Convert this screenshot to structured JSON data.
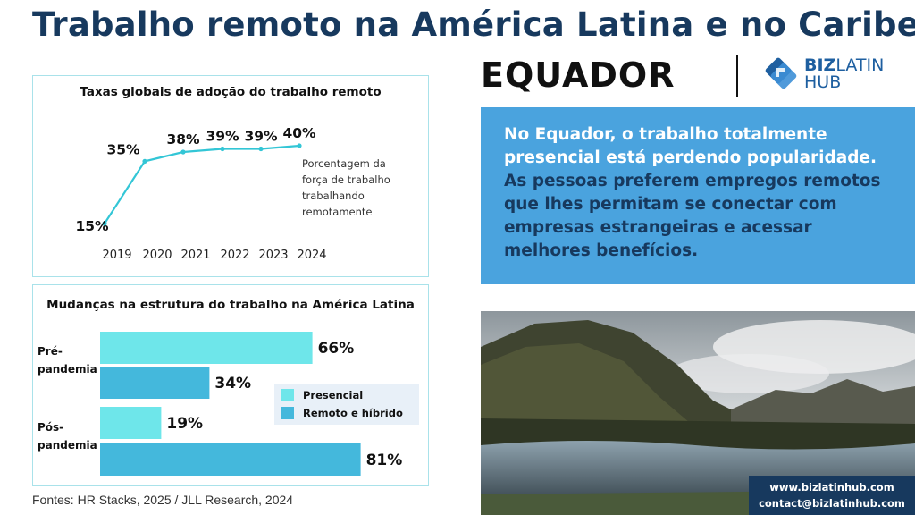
{
  "header": {
    "title": "Trabalho remoto na América Latina e no Caribe:",
    "country": "EQUADOR"
  },
  "logo": {
    "word1": "BIZ",
    "word2": "LATIN",
    "word3": "HUB"
  },
  "colors": {
    "title": "#17395e",
    "light_teal": "#6ee6ea",
    "mid_teal": "#44b8dc",
    "info_blue": "#4aa3de",
    "card_border": "#a9e2ea",
    "navy": "#17395e"
  },
  "chart_data": [
    {
      "type": "line",
      "title": "Taxas globais de adoção do trabalho remoto",
      "x": [
        "2019",
        "2020",
        "2021",
        "2022",
        "2023",
        "2024"
      ],
      "series": [
        {
          "values": [
            15,
            35,
            38,
            39,
            39,
            40
          ],
          "labels": [
            "15%",
            "35%",
            "38%",
            "39%",
            "39%",
            "40%"
          ]
        }
      ],
      "annotation": "Porcentagem da força de trabalho trabalhando remotamente",
      "ylim": [
        15,
        40
      ],
      "grid": false,
      "color": "#33c6d6"
    },
    {
      "type": "bar",
      "orientation": "horizontal",
      "title": "Mudanças na estrutura do trabalho na América Latina",
      "categories": [
        "Pré-pandemia",
        "Pós-pandemia"
      ],
      "series": [
        {
          "name": "Presencial",
          "values": [
            66,
            19
          ],
          "labels": [
            "66%",
            "19%"
          ],
          "color": "#6ee6ea"
        },
        {
          "name": "Remoto e híbrido",
          "values": [
            34,
            81
          ],
          "labels": [
            "34%",
            "81%"
          ],
          "color": "#44b8dc"
        }
      ],
      "xlim": [
        0,
        100
      ],
      "legend": "right"
    }
  ],
  "line_chart": {
    "annotation_lines": [
      "Porcentagem da",
      "força de trabalho",
      "trabalhando",
      "remotamente"
    ]
  },
  "bar_chart": {
    "category_lines": [
      [
        "Pré-",
        "pandemia"
      ],
      [
        "Pós-",
        "pandemia"
      ]
    ]
  },
  "info": {
    "part1": "No Equador, o trabalho totalmente presencial está perdendo popularidade.",
    "part2": "As pessoas preferem empregos remotos que lhes permitam se conectar com empresas estrangeiras e acessar melhores benefícios."
  },
  "contact": {
    "website": "www.bizlatinhub.com",
    "email": "contact@bizlatinhub.com"
  },
  "sources": "Fontes: HR Stacks, 2025 / JLL Research, 2024"
}
